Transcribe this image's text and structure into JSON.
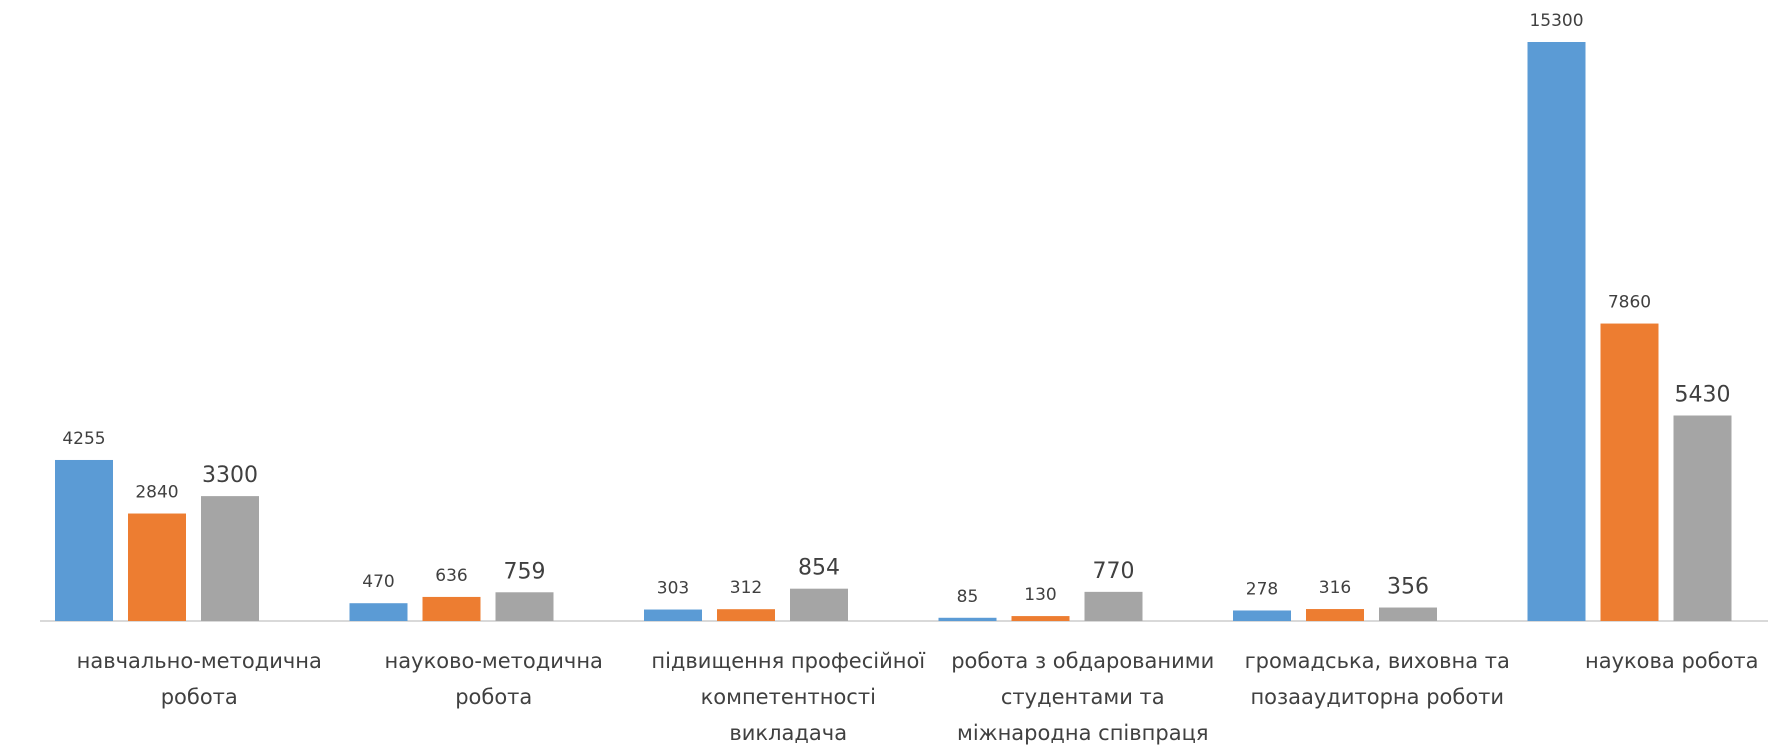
{
  "chart_data": {
    "type": "bar",
    "title": "",
    "xlabel": "",
    "ylabel": "",
    "ylim": [
      0,
      16000
    ],
    "grid": false,
    "legend": "none",
    "categories": [
      [
        "навчально-методична",
        "робота"
      ],
      [
        "науково-методична",
        "робота"
      ],
      [
        "підвищення професійної",
        "компетентності",
        "викладача"
      ],
      [
        "робота з обдарованими",
        "студентами та",
        "міжнародна співпраця"
      ],
      [
        "громадська, виховна та",
        "позааудиторна роботи"
      ],
      [
        "наукова робота"
      ]
    ],
    "series": [
      {
        "values": [
          4255,
          470,
          303,
          85,
          278,
          15300
        ],
        "color": "#5b9bd5",
        "label_style": "small"
      },
      {
        "values": [
          2840,
          636,
          312,
          130,
          316,
          7860
        ],
        "color": "#ed7d31",
        "label_style": "small"
      },
      {
        "values": [
          3300,
          759,
          854,
          770,
          356,
          5430
        ],
        "color": "#a5a5a5",
        "label_style": "large"
      }
    ]
  }
}
